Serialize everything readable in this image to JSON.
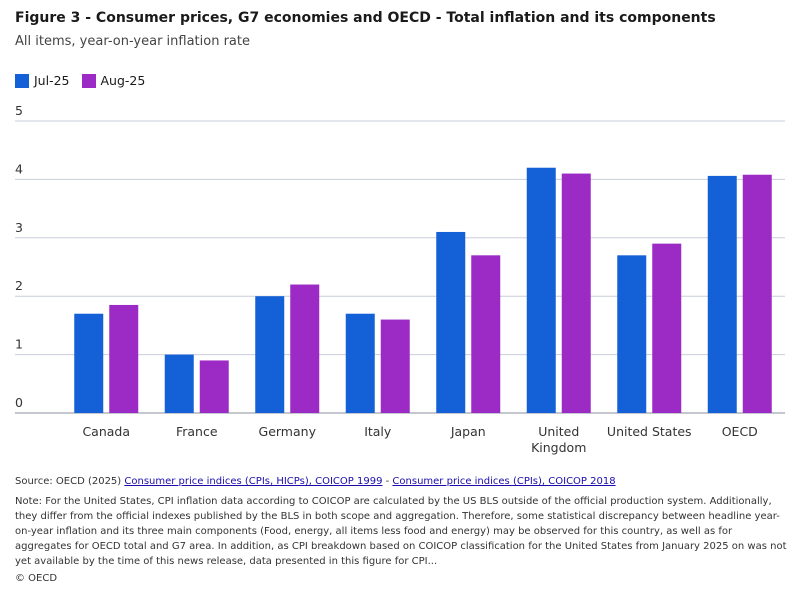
{
  "chart_data": {
    "type": "bar",
    "title": "Figure 3 - Consumer prices, G7 economies and OECD - Total inflation and its components",
    "subtitle": "All items, year-on-year inflation rate",
    "categories": [
      "Canada",
      "France",
      "Germany",
      "Italy",
      "Japan",
      "United Kingdom",
      "United States",
      "OECD"
    ],
    "series": [
      {
        "name": "Jul-25",
        "color": "#1460d6",
        "values": [
          1.7,
          1.0,
          2.0,
          1.7,
          3.1,
          4.2,
          2.7,
          4.06
        ]
      },
      {
        "name": "Aug-25",
        "color": "#9b2bc4",
        "values": [
          1.85,
          0.9,
          2.2,
          1.6,
          2.7,
          4.1,
          2.9,
          4.08
        ]
      }
    ],
    "ylim": [
      0,
      5
    ],
    "yticks": [
      0,
      1,
      2,
      3,
      4,
      5
    ],
    "grid": true,
    "legend": "top-left"
  },
  "footer": {
    "source_prefix": "Source: OECD (2025)",
    "source_link_1": "Consumer price indices (CPIs, HICPs), COICOP 1999",
    "source_separator": "-",
    "source_link_2": "Consumer price indices (CPIs), COICOP 2018",
    "note": "Note: For the United States, CPI inflation data according to COICOP are calculated by the US BLS outside of the official production system. Additionally, they differ from the official indexes published by the BLS in both scope and aggregation. Therefore, some statistical discrepancy between headline year-on-year inflation and its three main components (Food, energy, all items less food and energy) may be observed for this country, as well as for aggregates for OECD total and G7 area. In addition, as CPI breakdown based on COICOP classification for the United States from January 2025 on was not yet available by the time of this news release, data presented in this figure for CPI...",
    "copyright": "© OECD"
  }
}
